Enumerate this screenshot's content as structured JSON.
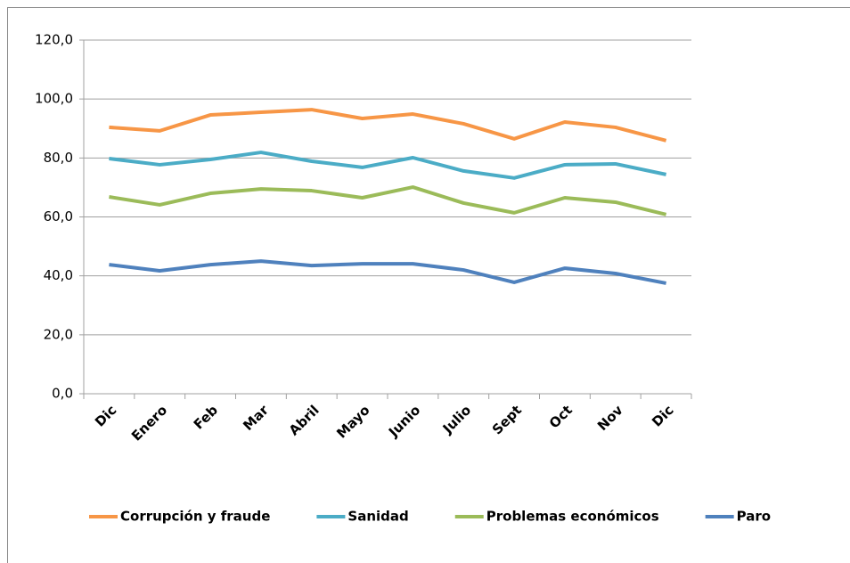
{
  "chart_data": {
    "type": "line",
    "categories": [
      "Dic",
      "Enero",
      "Feb",
      "Mar",
      "Abril",
      "Mayo",
      "Junio",
      "Julio",
      "Sept",
      "Oct",
      "Nov",
      "Dic"
    ],
    "series": [
      {
        "name": "Corrupción y fraude",
        "color": "#f79646",
        "values": [
          90.4,
          89.2,
          94.6,
          95.5,
          96.4,
          93.4,
          94.9,
          91.6,
          86.5,
          92.2,
          90.4,
          85.9
        ]
      },
      {
        "name": "Sanidad",
        "color": "#4bacc6",
        "values": [
          79.8,
          77.7,
          79.5,
          81.9,
          78.9,
          76.8,
          80.1,
          75.6,
          73.2,
          77.7,
          78.0,
          74.4
        ]
      },
      {
        "name": "Problemas económicos",
        "color": "#9bbb59",
        "values": [
          66.8,
          64.1,
          68.0,
          69.5,
          68.9,
          66.5,
          70.1,
          64.7,
          61.4,
          66.5,
          65.0,
          60.8
        ]
      },
      {
        "name": "Paro",
        "color": "#4f81bd",
        "values": [
          43.8,
          41.7,
          43.8,
          45.0,
          43.5,
          44.1,
          44.1,
          42.0,
          37.8,
          42.6,
          40.8,
          37.5
        ]
      }
    ],
    "ylim": [
      0,
      120
    ],
    "yticks": [
      {
        "value": 0,
        "label": "0,0"
      },
      {
        "value": 20,
        "label": "20,0"
      },
      {
        "value": 40,
        "label": "40,0"
      },
      {
        "value": 60,
        "label": "60,0"
      },
      {
        "value": 80,
        "label": "80,0"
      },
      {
        "value": 100,
        "label": "100,0"
      },
      {
        "value": 120,
        "label": "120,0"
      }
    ],
    "grid": true,
    "legend": "bottom"
  }
}
